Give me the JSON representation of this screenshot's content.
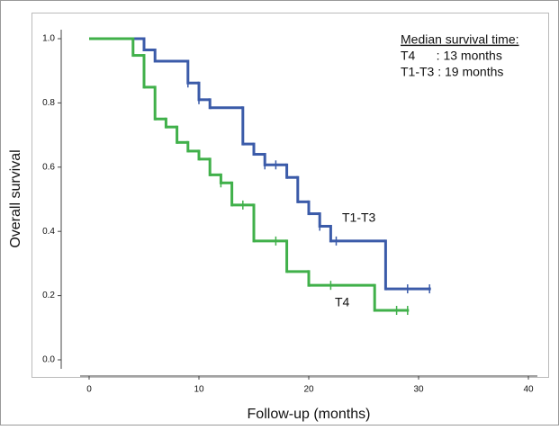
{
  "chart_data": {
    "type": "km",
    "xlabel": "Follow-up (months)",
    "ylabel": "Overall survival",
    "xlim": [
      0,
      40
    ],
    "xticks": [
      0,
      10,
      20,
      30,
      40
    ],
    "ylim": [
      0,
      1
    ],
    "yticks": [
      {
        "value": 0,
        "label": "0.0"
      },
      {
        "value": 0.2,
        "label": "0.2"
      },
      {
        "value": 0.4,
        "label": "0.4"
      },
      {
        "value": 0.6,
        "label": "0.6"
      },
      {
        "value": 0.8,
        "label": "0.8"
      },
      {
        "value": 1,
        "label": "1.0"
      }
    ],
    "annotations": [
      "Median survival time:",
      "T4      : 13 months",
      "T1-T3 : 19 months"
    ],
    "series": [
      {
        "name": "T1-T3",
        "color": "#3b5ba9",
        "x": [
          0,
          5,
          6,
          9,
          10,
          11,
          14,
          15,
          16,
          18,
          19,
          20,
          21,
          22,
          27,
          31
        ],
        "values": [
          1.0,
          0.965,
          0.93,
          0.862,
          0.81,
          0.785,
          0.672,
          0.64,
          0.607,
          0.568,
          0.492,
          0.455,
          0.416,
          0.37,
          0.221,
          0.221
        ],
        "censored": {
          "x": [
            9,
            10,
            16,
            17,
            21,
            22.5,
            29,
            31
          ],
          "values": [
            0.862,
            0.81,
            0.607,
            0.607,
            0.416,
            0.37,
            0.221,
            0.221
          ]
        }
      },
      {
        "name": "T4",
        "color": "#40b04a",
        "x": [
          0,
          4,
          5,
          6,
          7,
          8,
          9,
          10,
          11,
          12,
          13,
          15,
          18,
          20,
          26,
          29
        ],
        "values": [
          1.0,
          0.948,
          0.849,
          0.75,
          0.725,
          0.677,
          0.65,
          0.625,
          0.576,
          0.551,
          0.482,
          0.37,
          0.275,
          0.232,
          0.154,
          0.154
        ],
        "censored": {
          "x": [
            12,
            14,
            17,
            22,
            28,
            29
          ],
          "values": [
            0.551,
            0.482,
            0.37,
            0.232,
            0.154,
            0.154
          ]
        }
      }
    ]
  }
}
